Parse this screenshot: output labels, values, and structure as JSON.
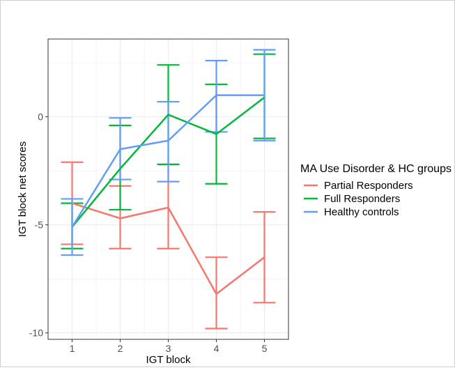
{
  "chart_data": {
    "type": "line",
    "title": "",
    "xlabel": "IGT block",
    "ylabel": "IGT block net scores",
    "categories": [
      1,
      2,
      3,
      4,
      5
    ],
    "xlim": [
      0.5,
      5.5
    ],
    "ylim": [
      -10.3,
      3.6
    ],
    "y_ticks": [
      0,
      -5,
      -10
    ],
    "grid": true,
    "legend": {
      "title": "MA Use Disorder & HC groups",
      "position": "right"
    },
    "series": [
      {
        "name": "Partial Responders",
        "color": "#F8766D",
        "values": [
          -4.0,
          -4.7,
          -4.2,
          -8.2,
          -6.5
        ],
        "ci_lower": [
          -5.9,
          -6.1,
          -6.1,
          -9.8,
          -8.6
        ],
        "ci_upper": [
          -2.1,
          -3.2,
          -2.2,
          -6.5,
          -4.4
        ]
      },
      {
        "name": "Full Responders",
        "color": "#00BA38",
        "values": [
          -5.1,
          -2.4,
          0.1,
          -0.8,
          0.9
        ],
        "ci_lower": [
          -6.1,
          -4.3,
          -2.2,
          -3.1,
          -1.0
        ],
        "ci_upper": [
          -4.0,
          -0.4,
          2.4,
          1.5,
          2.9
        ]
      },
      {
        "name": "Healthy controls",
        "color": "#619CFF",
        "values": [
          -5.1,
          -1.5,
          -1.1,
          1.0,
          1.0
        ],
        "ci_lower": [
          -6.4,
          -2.9,
          -3.0,
          -0.7,
          -1.1
        ],
        "ci_upper": [
          -3.8,
          -0.05,
          0.7,
          2.6,
          3.1
        ]
      }
    ]
  }
}
